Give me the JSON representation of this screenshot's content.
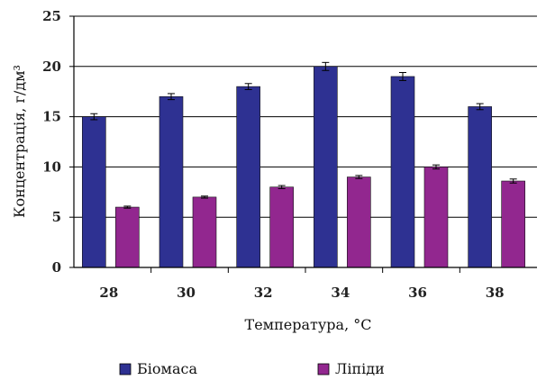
{
  "chart_data": {
    "type": "bar",
    "title": "",
    "xlabel": "Температура, °C",
    "ylabel": "Концентрація, г/дм³",
    "ylim": [
      0,
      25
    ],
    "yticks": [
      "0",
      "5",
      "10",
      "15",
      "20",
      "25"
    ],
    "grid": true,
    "categories": [
      "28",
      "30",
      "32",
      "34",
      "36",
      "38"
    ],
    "series": [
      {
        "name": "Біомаса",
        "color": "#2e3192",
        "values": [
          15,
          17,
          18,
          20,
          19,
          16
        ],
        "errors": [
          0.3,
          0.3,
          0.3,
          0.4,
          0.4,
          0.3
        ]
      },
      {
        "name": "Ліпіди",
        "color": "#92278f",
        "values": [
          6,
          7,
          8,
          9,
          10,
          8.6
        ],
        "errors": [
          0.1,
          0.1,
          0.15,
          0.15,
          0.2,
          0.2
        ]
      }
    ],
    "legend_position": "bottom"
  }
}
